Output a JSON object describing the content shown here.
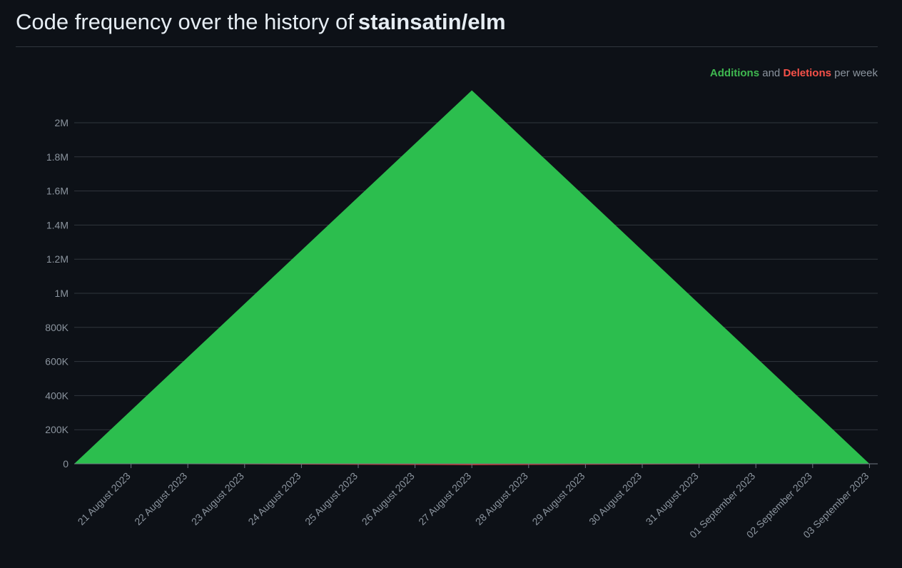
{
  "header": {
    "title_prefix": "Code frequency over the history of",
    "repo": "stainsatin/elm"
  },
  "legend": {
    "additions": "Additions",
    "and": "and",
    "deletions": "Deletions",
    "suffix": "per week"
  },
  "colors": {
    "additions": "#2cbe4e",
    "deletions": "#da3633",
    "grid": "#30363d",
    "tick_text": "#8b949e"
  },
  "chart_data": {
    "type": "area",
    "x": [
      "20 August 2023",
      "27 August 2023",
      "03 September 2023"
    ],
    "x_tick_labels": [
      "21 August 2023",
      "22 August 2023",
      "23 August 2023",
      "24 August 2023",
      "25 August 2023",
      "26 August 2023",
      "27 August 2023",
      "28 August 2023",
      "29 August 2023",
      "30 August 2023",
      "31 August 2023",
      "01 September 2023",
      "02 September 2023",
      "03 September 2023"
    ],
    "y_ticks": [
      0,
      200000,
      400000,
      600000,
      800000,
      1000000,
      1200000,
      1400000,
      1600000,
      1800000,
      2000000
    ],
    "y_tick_labels": [
      "0",
      "200K",
      "400K",
      "600K",
      "800K",
      "1M",
      "1.2M",
      "1.4M",
      "1.6M",
      "1.8M",
      "2M"
    ],
    "ylim": [
      0,
      2190000
    ],
    "series": [
      {
        "name": "Additions",
        "values": [
          0,
          2190000,
          0
        ]
      },
      {
        "name": "Deletions",
        "values": [
          0,
          -3000,
          0
        ]
      }
    ],
    "grid": true,
    "legend_position": "top-right"
  }
}
